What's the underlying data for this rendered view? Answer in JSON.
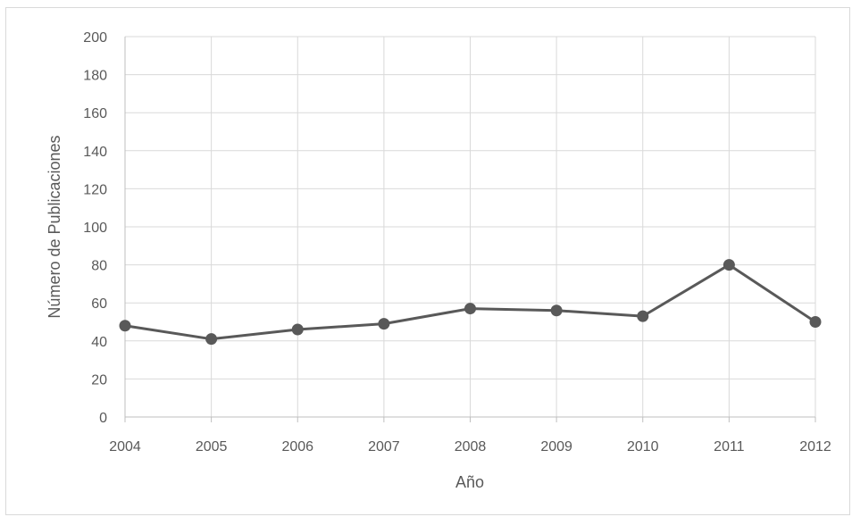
{
  "chart_data": {
    "type": "line",
    "title": "",
    "xlabel": "Año",
    "ylabel": "Número de Publicaciones",
    "categories": [
      "2004",
      "2005",
      "2006",
      "2007",
      "2008",
      "2009",
      "2010",
      "2011",
      "2012"
    ],
    "series": [
      {
        "values": [
          48,
          41,
          46,
          49,
          57,
          56,
          53,
          80,
          50
        ]
      }
    ],
    "ylim": [
      0,
      200
    ],
    "yticks": [
      "0",
      "20",
      "40",
      "60",
      "80",
      "100",
      "120",
      "140",
      "160",
      "180",
      "200"
    ],
    "grid": true,
    "legend": "none",
    "colors": {
      "line": "#595959",
      "marker": "#595959",
      "grid": "#d9d9d9",
      "axis": "#bfbfbf",
      "text": "#595959"
    }
  }
}
